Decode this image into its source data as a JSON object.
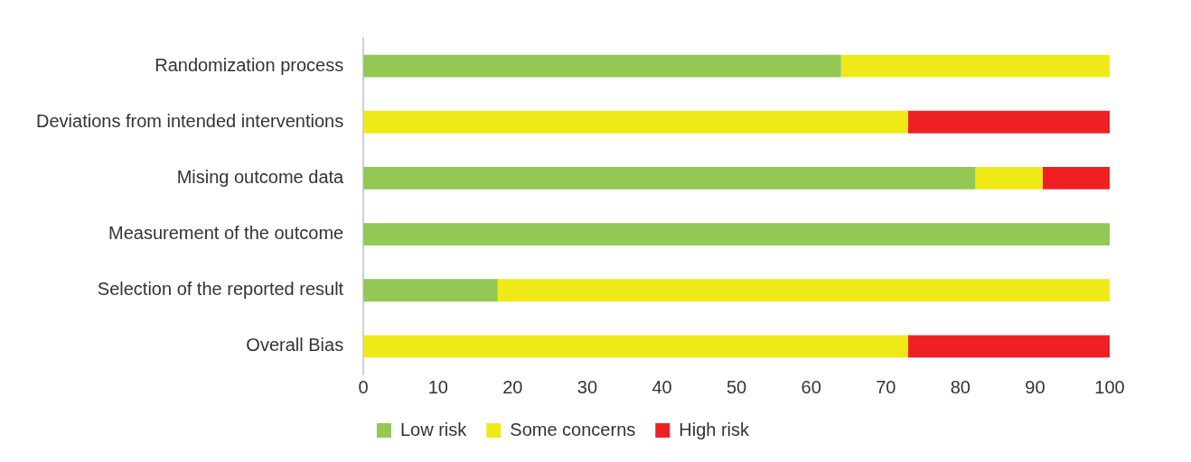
{
  "chart_data": {
    "type": "bar",
    "orientation": "horizontal",
    "stacked": true,
    "categories": [
      "Randomization process",
      "Deviations from intended interventions",
      "Mising outcome data",
      "Measurement of the outcome",
      "Selection of the reported result",
      "Overall Bias"
    ],
    "series": [
      {
        "name": "Low risk",
        "color": "#92c853",
        "values": [
          64,
          0,
          82,
          100,
          18,
          0
        ]
      },
      {
        "name": "Some concerns",
        "color": "#f0e918",
        "values": [
          36,
          73,
          9,
          0,
          82,
          73
        ]
      },
      {
        "name": "High risk",
        "color": "#ee2024",
        "values": [
          0,
          27,
          9,
          0,
          0,
          27
        ]
      }
    ],
    "xlim": [
      0,
      100
    ],
    "xticks": [
      0,
      10,
      20,
      30,
      40,
      50,
      60,
      70,
      80,
      90,
      100
    ],
    "grid": false,
    "legend": "bottom"
  }
}
